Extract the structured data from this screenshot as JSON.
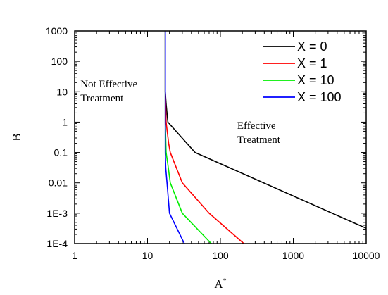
{
  "chart_data": {
    "type": "line",
    "title": "",
    "xlabel": "A",
    "xlabel_superscript": "*",
    "ylabel": "B",
    "xscale": "log",
    "yscale": "log",
    "xlim": [
      1,
      10000
    ],
    "ylim": [
      0.0001,
      1000
    ],
    "grid": false,
    "legend_position": "top-right",
    "x_tick_labels": [
      "1",
      "10",
      "100",
      "1000",
      "10000"
    ],
    "y_tick_labels": [
      "1E-4",
      "1E-3",
      "0.01",
      "0.1",
      "1",
      "10",
      "100",
      "1000"
    ],
    "annotations": [
      {
        "lines": [
          "Not Effective",
          "Treatment"
        ],
        "x": 1.2,
        "y": 14
      },
      {
        "lines": [
          "Effective",
          "Treatment"
        ],
        "x": 170,
        "y": 0.6
      }
    ],
    "series": [
      {
        "name": "X = 0",
        "color": "#000000",
        "x": [
          17.5,
          17.5,
          18.0,
          19.0,
          45,
          10000
        ],
        "y": [
          1000,
          10,
          4,
          1.0,
          0.1,
          0.00032
        ]
      },
      {
        "name": "X = 1",
        "color": "#ff0000",
        "x": [
          17.5,
          17.5,
          18.0,
          19.5,
          20.5,
          30,
          70,
          210
        ],
        "y": [
          1000,
          10,
          1,
          0.2,
          0.1,
          0.01,
          0.001,
          0.0001
        ]
      },
      {
        "name": "X = 10",
        "color": "#00ee00",
        "x": [
          17.5,
          17.5,
          18.0,
          19.0,
          20.5,
          30,
          75
        ],
        "y": [
          1000,
          1,
          0.1,
          0.04,
          0.01,
          0.001,
          0.0001
        ]
      },
      {
        "name": "X = 100",
        "color": "#0000ff",
        "x": [
          17.5,
          17.5,
          17.8,
          18.5,
          20.0,
          32
        ],
        "y": [
          1000,
          0.1,
          0.03,
          0.01,
          0.001,
          0.0001
        ]
      }
    ]
  }
}
